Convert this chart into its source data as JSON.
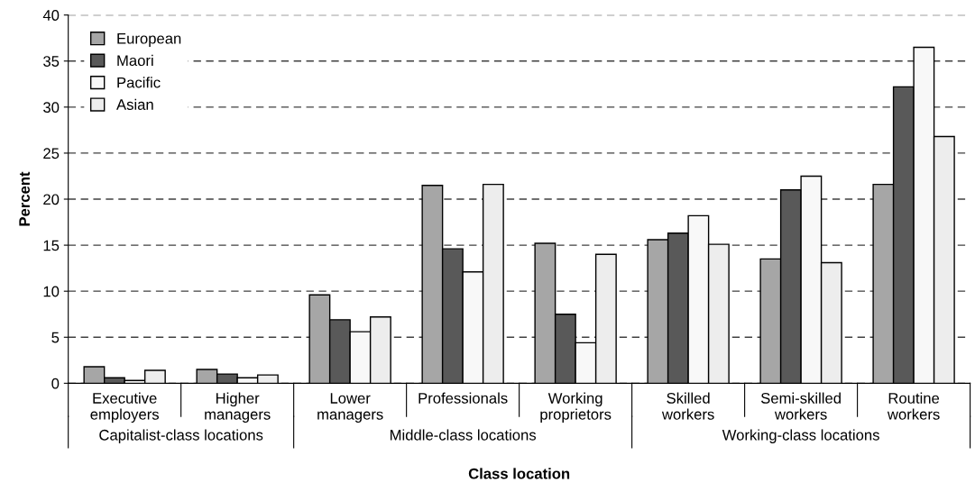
{
  "chart_data": {
    "type": "bar",
    "xlabel": "Class location",
    "ylabel": "Percent",
    "categories": [
      "Executive\nemployers",
      "Higher\nmanagers",
      "Lower\nmanagers",
      "Professionals",
      "Working\nproprietors",
      "Skilled\nworkers",
      "Semi-skilled\nworkers",
      "Routine\nworkers"
    ],
    "series": [
      {
        "name": "European",
        "color": "#a6a6a6",
        "values": [
          1.8,
          1.5,
          9.6,
          21.5,
          15.2,
          15.6,
          13.5,
          21.6
        ]
      },
      {
        "name": "Maori",
        "color": "#595959",
        "values": [
          0.6,
          1.0,
          6.9,
          14.6,
          7.5,
          16.3,
          21.0,
          32.2
        ]
      },
      {
        "name": "Pacific",
        "color": "#f8f8f8",
        "values": [
          0.3,
          0.6,
          5.6,
          12.1,
          4.4,
          18.2,
          22.5,
          36.5
        ]
      },
      {
        "name": "Asian",
        "color": "#ededed",
        "values": [
          1.4,
          0.9,
          7.2,
          21.6,
          14.0,
          15.1,
          13.1,
          26.8
        ]
      }
    ],
    "annotations": [
      "Capitalist-class locations",
      "Middle-class locations",
      "Working-class locations"
    ],
    "ylim": [
      0,
      40
    ],
    "yticks": [
      0,
      5,
      10,
      15,
      20,
      25,
      30,
      35,
      40
    ],
    "grid": "y",
    "legend": "top left"
  }
}
